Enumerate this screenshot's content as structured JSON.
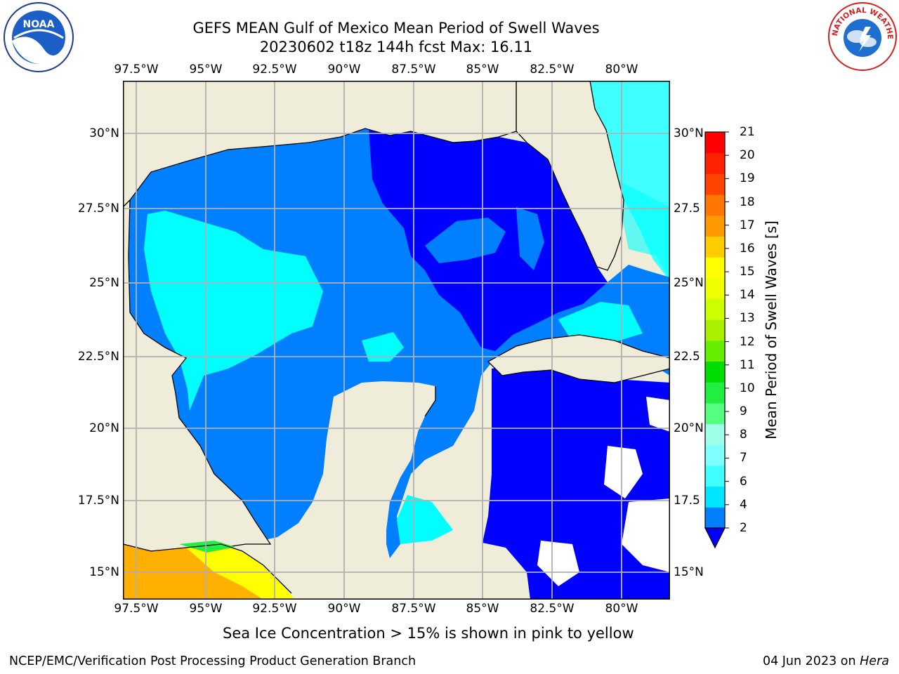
{
  "header": {
    "title_line1": "GEFS MEAN Gulf of Mexico Mean Period of Swell Waves",
    "title_line2": "20230602 t18z 144h fcst   Max: 16.11"
  },
  "logos": {
    "noaa_text": "NOAA",
    "nws_text": "NATIONAL WEATHER SERVICE"
  },
  "axes": {
    "lon_labels": [
      "97.5°W",
      "95°W",
      "92.5°W",
      "90°W",
      "87.5°W",
      "85°W",
      "82.5°W",
      "80°W"
    ],
    "lat_labels_left": [
      "30°N",
      "27.5°N",
      "25°N",
      "22.5°N",
      "20°N",
      "17.5°N",
      "15°N"
    ],
    "lat_labels_right": [
      "30°N",
      "27.5",
      "25°N",
      "22.5",
      "20°N",
      "17.5",
      "15°N"
    ]
  },
  "colorbar": {
    "title": "Mean Period of Swell Waves [s]",
    "levels": [
      2,
      4,
      6,
      7,
      8,
      9,
      10,
      11,
      12,
      13,
      14,
      15,
      16,
      17,
      18,
      19,
      20,
      21
    ],
    "colors": [
      "#0080ff",
      "#00e5ff",
      "#40ffff",
      "#80ffff",
      "#a0ffe8",
      "#55ff80",
      "#20ee40",
      "#00dd00",
      "#66ee00",
      "#aaee00",
      "#ccff00",
      "#eeff00",
      "#ffff00",
      "#ffcc00",
      "#ff9900",
      "#ff7700",
      "#ff4400",
      "#ff2200",
      "#ff0000"
    ],
    "under_color": "#0000ff"
  },
  "map_colors": {
    "land": "#efedd9",
    "deep_blue": "#0000ff",
    "blue": "#0080ff",
    "cyan": "#00ffff",
    "light_cyan": "#40ffff",
    "orange": "#ffb000",
    "yellow": "#ffff00"
  },
  "caption": "Sea Ice Concentration > 15% is shown in pink to yellow",
  "footer": {
    "left": "NCEP/EMC/Verification Post Processing Product Generation Branch",
    "right_date": "04 Jun 2023 on ",
    "right_host": "Hera"
  }
}
